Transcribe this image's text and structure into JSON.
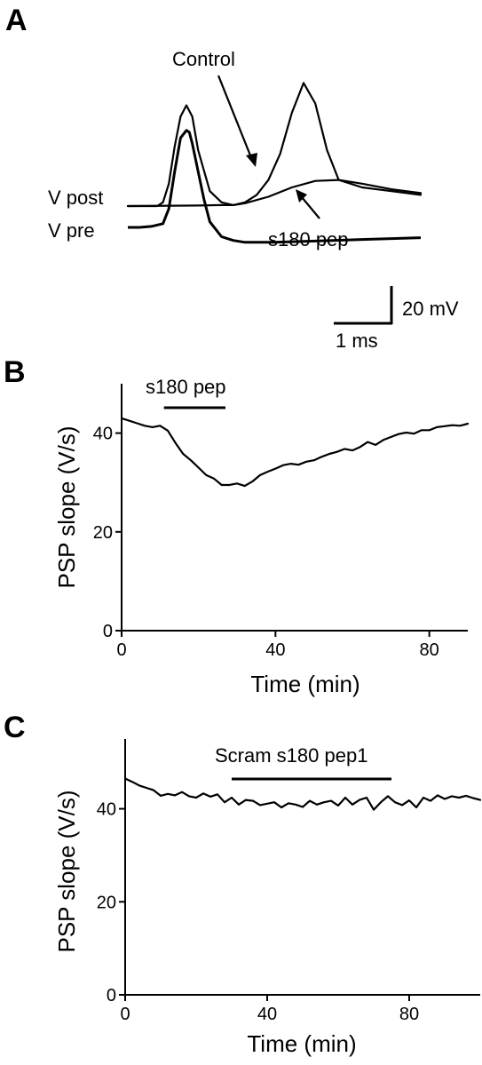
{
  "chart_data": [
    {
      "panel": "A",
      "type": "line",
      "title": "",
      "labels": {
        "v_post": "V post",
        "v_pre": "V pre",
        "control": "Control",
        "peptide": "s180 pep"
      },
      "scale_bar": {
        "voltage": 20,
        "voltage_label": "20 mV",
        "time": 1,
        "time_label": "1 ms"
      },
      "series": [
        {
          "name": "V pre",
          "x": [
            0.0,
            0.2,
            0.4,
            0.6,
            0.7,
            0.8,
            0.9,
            1.0,
            1.05,
            1.1,
            1.2,
            1.3,
            1.4,
            1.6,
            1.8,
            2.0,
            2.5,
            3.0,
            3.5,
            4.0,
            4.5,
            5.0
          ],
          "y": [
            0,
            0,
            0.5,
            2,
            10,
            30,
            48,
            52,
            51,
            45,
            30,
            15,
            3,
            -5,
            -7,
            -8,
            -8,
            -7.5,
            -7,
            -6.5,
            -6,
            -5.5
          ]
        },
        {
          "name": "Control",
          "x": [
            0.0,
            0.5,
            0.6,
            0.7,
            0.8,
            0.9,
            1.0,
            1.1,
            1.2,
            1.4,
            1.6,
            1.8,
            2.0,
            2.2,
            2.4,
            2.6,
            2.8,
            3.0,
            3.2,
            3.4,
            3.6,
            4.0,
            4.5,
            5.0
          ],
          "y": [
            0,
            0,
            2,
            12,
            32,
            48,
            54,
            48,
            30,
            8,
            2,
            0.5,
            2,
            6,
            14,
            28,
            50,
            66,
            55,
            30,
            14,
            10,
            8,
            6
          ]
        },
        {
          "name": "s180 pep",
          "x": [
            0.0,
            1.2,
            1.6,
            1.8,
            2.0,
            2.4,
            2.8,
            3.2,
            3.6,
            4.0,
            4.5,
            5.0
          ],
          "y": [
            0,
            0.3,
            0.5,
            0.5,
            1.5,
            5,
            10,
            13.5,
            14,
            12,
            9,
            7
          ]
        }
      ]
    },
    {
      "panel": "B",
      "type": "line",
      "xlabel": "Time (min)",
      "ylabel": "PSP slope (V/s)",
      "xlim": [
        0,
        90
      ],
      "ylim": [
        0,
        50
      ],
      "xticks": [
        0,
        40,
        80
      ],
      "yticks": [
        0,
        20,
        40
      ],
      "bar": {
        "label": "s180 pep",
        "start": 11,
        "end": 27
      },
      "series": [
        {
          "name": "",
          "x": [
            0,
            2,
            4,
            6,
            8,
            10,
            12,
            14,
            16,
            18,
            20,
            22,
            24,
            26,
            28,
            30,
            32,
            34,
            36,
            38,
            40,
            42,
            44,
            46,
            48,
            50,
            52,
            54,
            56,
            58,
            60,
            62,
            64,
            66,
            68,
            70,
            72,
            74,
            76,
            78,
            80,
            82,
            84,
            86,
            88,
            90
          ],
          "y": [
            43,
            42.5,
            42,
            41.5,
            41.2,
            41.5,
            40.5,
            38,
            35.8,
            34.5,
            33,
            31.5,
            30.8,
            29.5,
            29.5,
            29.8,
            29.3,
            30.2,
            31.5,
            32.2,
            32.8,
            33.5,
            33.8,
            33.6,
            34.2,
            34.5,
            35.2,
            35.8,
            36.2,
            36.8,
            36.5,
            37.2,
            38.2,
            37.6,
            38.6,
            39.2,
            39.8,
            40.1,
            39.9,
            40.6,
            40.6,
            41.2,
            41.4,
            41.6,
            41.5,
            41.9
          ]
        }
      ]
    },
    {
      "panel": "C",
      "type": "line",
      "xlabel": "Time (min)",
      "ylabel": "PSP slope (V/s)",
      "xlim": [
        0,
        100
      ],
      "ylim": [
        0,
        55
      ],
      "xticks": [
        0,
        40,
        80
      ],
      "yticks": [
        0,
        20,
        40
      ],
      "bar": {
        "label": "Scram s180 pep1",
        "start": 30,
        "end": 75
      },
      "series": [
        {
          "name": "",
          "x": [
            0,
            2,
            4,
            6,
            8,
            10,
            12,
            14,
            16,
            18,
            20,
            22,
            24,
            26,
            28,
            30,
            32,
            34,
            36,
            38,
            40,
            42,
            44,
            46,
            48,
            50,
            52,
            54,
            56,
            58,
            60,
            62,
            64,
            66,
            68,
            70,
            72,
            74,
            76,
            78,
            80,
            82,
            84,
            86,
            88,
            90,
            92,
            94,
            96,
            98,
            100
          ],
          "y": [
            46.5,
            45.8,
            45,
            44.5,
            44,
            42.8,
            43.2,
            42.9,
            43.6,
            42.7,
            42.4,
            43.3,
            42.6,
            43.1,
            41.4,
            42.4,
            40.9,
            41.9,
            41.7,
            40.8,
            41.1,
            41.4,
            40.3,
            41.2,
            40.9,
            40.4,
            41.7,
            40.9,
            41.4,
            41.7,
            40.7,
            42.4,
            40.9,
            41.9,
            42.4,
            39.8,
            41.4,
            42.7,
            41.4,
            40.8,
            41.8,
            40.3,
            42.4,
            41.7,
            42.9,
            42.1,
            42.7,
            42.4,
            42.8,
            42.3,
            41.9
          ]
        }
      ]
    }
  ]
}
